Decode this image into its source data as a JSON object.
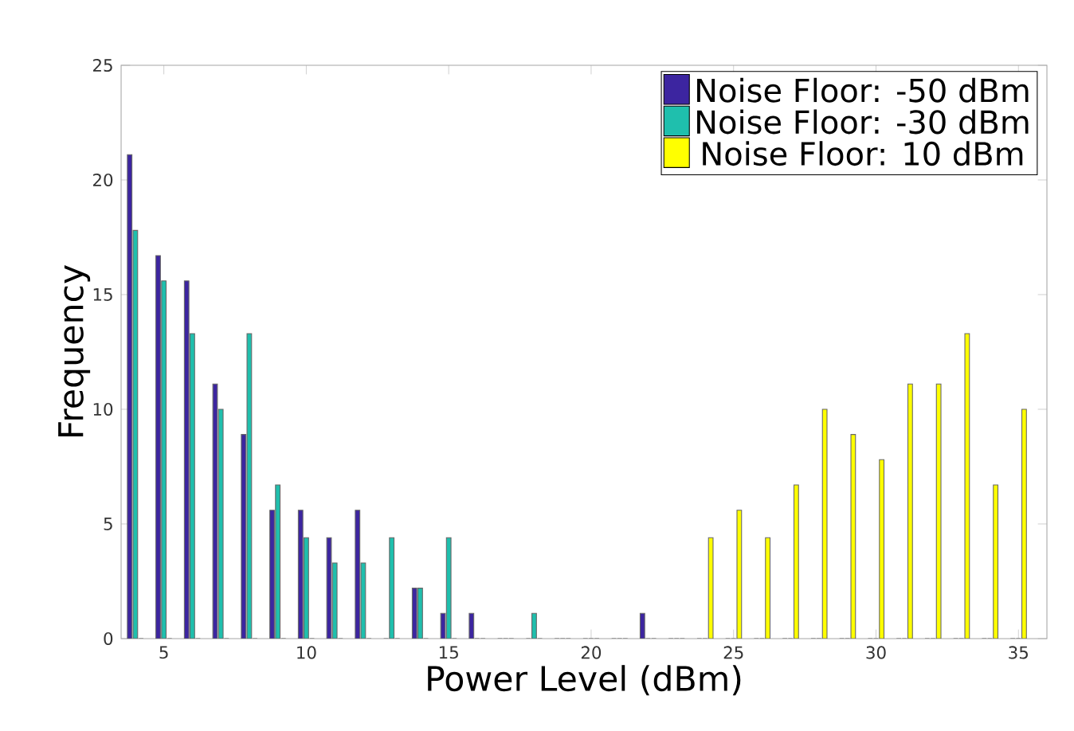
{
  "chart_data": {
    "type": "bar",
    "xlabel": "Power Level (dBm)",
    "ylabel": "Frequency",
    "x": [
      4,
      5,
      6,
      7,
      8,
      9,
      10,
      11,
      12,
      13,
      14,
      15,
      16,
      17,
      18,
      19,
      20,
      21,
      22,
      23,
      24,
      25,
      26,
      27,
      28,
      29,
      30,
      31,
      32,
      33,
      34,
      35
    ],
    "series": [
      {
        "name": "Noise Floor: -50 dBm",
        "color": "#3c25a0",
        "values": [
          21.1,
          16.7,
          15.6,
          11.1,
          8.9,
          5.6,
          5.6,
          4.4,
          5.6,
          0,
          2.2,
          1.1,
          1.1,
          0,
          0,
          0,
          0,
          0,
          1.1,
          0,
          0,
          0,
          0,
          0,
          0,
          0,
          0,
          0,
          0,
          0,
          0,
          0
        ]
      },
      {
        "name": "Noise Floor: -30 dBm",
        "color": "#1fbfad",
        "values": [
          17.8,
          15.6,
          13.3,
          10,
          13.3,
          6.7,
          4.4,
          3.3,
          3.3,
          4.4,
          2.2,
          4.4,
          0,
          0,
          1.1,
          0,
          0,
          0,
          0,
          0,
          0,
          0,
          0,
          0,
          0,
          0,
          0,
          0,
          0,
          0,
          0,
          0
        ]
      },
      {
        "name": "Noise Floor: 10 dBm",
        "color": "#ffff00",
        "values": [
          0,
          0,
          0,
          0,
          0,
          0,
          0,
          0,
          0,
          0,
          0,
          0,
          0,
          0,
          0,
          0,
          0,
          0,
          0,
          0,
          4.4,
          5.6,
          4.4,
          6.7,
          10,
          8.9,
          7.8,
          11.1,
          11.1,
          13.3,
          6.7,
          10
        ]
      }
    ],
    "xlim": [
      3.5,
      36
    ],
    "ylim": [
      0,
      25
    ],
    "xticks": [
      5,
      10,
      15,
      20,
      25,
      30,
      35
    ],
    "yticks": [
      0,
      5,
      10,
      15,
      20,
      25
    ],
    "grid": false,
    "legend": "top right"
  }
}
